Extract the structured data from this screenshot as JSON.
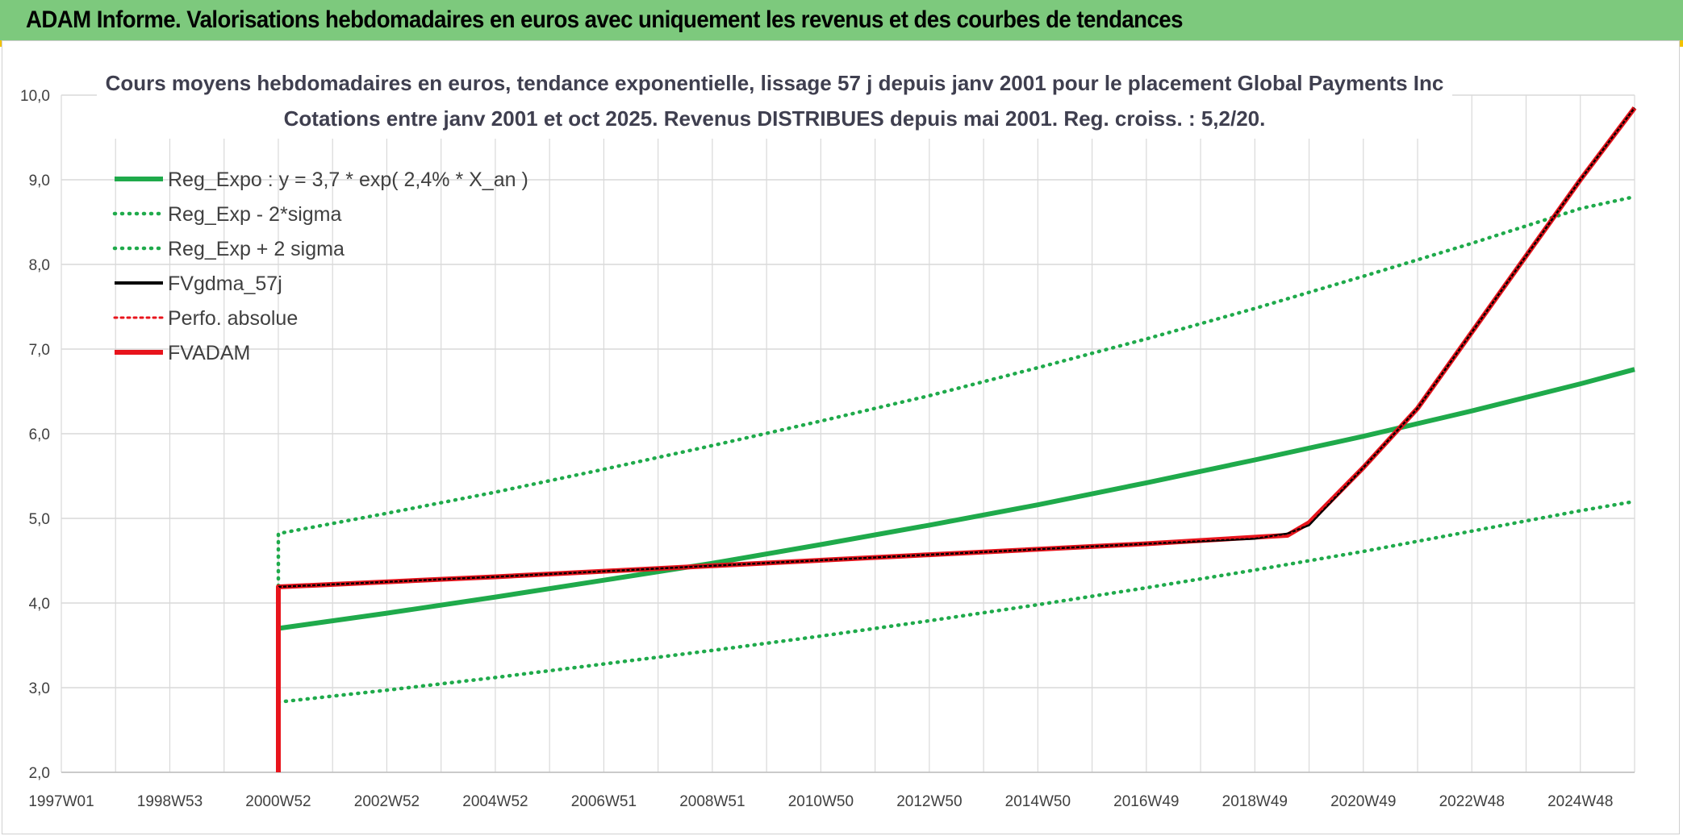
{
  "banner": {
    "title": "ADAM Informe. Valorisations hebdomadaires en euros avec uniquement les revenus et des courbes de tendances"
  },
  "chart_data": {
    "type": "line",
    "title": "Cours moyens hebdomadaires en euros, tendance exponentielle, lissage 57 j depuis janv 2001 pour le placement Global Payments Inc",
    "subtitle": "Cotations entre janv 2001 et oct 2025. Revenus DISTRIBUES depuis mai 2001. Reg. croiss. : 5,2/20.",
    "xlabel": "",
    "ylabel": "",
    "ylim": [
      2.0,
      10.0
    ],
    "y_ticks": [
      "2,0",
      "3,0",
      "4,0",
      "5,0",
      "6,0",
      "7,0",
      "8,0",
      "9,0",
      "10,0"
    ],
    "x_range": [
      1997.0,
      2026.0
    ],
    "x_ticks": [
      {
        "label": "1997W01",
        "x": 1997.0
      },
      {
        "label": "1998W53",
        "x": 1999.0
      },
      {
        "label": "2000W52",
        "x": 2001.0
      },
      {
        "label": "2002W52",
        "x": 2003.0
      },
      {
        "label": "2004W52",
        "x": 2005.0
      },
      {
        "label": "2006W51",
        "x": 2007.0
      },
      {
        "label": "2008W51",
        "x": 2009.0
      },
      {
        "label": "2010W50",
        "x": 2011.0
      },
      {
        "label": "2012W50",
        "x": 2013.0
      },
      {
        "label": "2014W50",
        "x": 2015.0
      },
      {
        "label": "2016W49",
        "x": 2017.0
      },
      {
        "label": "2018W49",
        "x": 2019.0
      },
      {
        "label": "2020W49",
        "x": 2021.0
      },
      {
        "label": "2022W48",
        "x": 2023.0
      },
      {
        "label": "2024W48",
        "x": 2025.0
      }
    ],
    "grid": true,
    "legend_position": "top-left",
    "series": [
      {
        "name": "Reg_Expo : y = 3,7 * exp( 2,4% *  X_an )",
        "color": "#1faa4b",
        "style": "solid",
        "x": [
          2001.0,
          2003.0,
          2005.0,
          2007.0,
          2009.0,
          2011.0,
          2013.0,
          2015.0,
          2017.0,
          2019.0,
          2021.0,
          2023.0,
          2025.0,
          2026.0
        ],
        "y": [
          3.7,
          3.88,
          4.07,
          4.27,
          4.47,
          4.69,
          4.92,
          5.16,
          5.42,
          5.69,
          5.97,
          6.27,
          6.59,
          6.76
        ]
      },
      {
        "name": "Reg_Exp - 2*sigma",
        "color": "#1faa4b",
        "style": "dotted",
        "x": [
          2001.0,
          2003.0,
          2005.0,
          2007.0,
          2009.0,
          2011.0,
          2013.0,
          2015.0,
          2017.0,
          2019.0,
          2021.0,
          2023.0,
          2025.0,
          2026.0
        ],
        "y": [
          2.83,
          2.97,
          3.12,
          3.28,
          3.44,
          3.61,
          3.79,
          3.98,
          4.18,
          4.39,
          4.61,
          4.85,
          5.09,
          5.2
        ]
      },
      {
        "name": "Reg_Exp + 2 sigma",
        "color": "#1faa4b",
        "style": "dotted",
        "x": [
          2001.0,
          2001.0,
          2003.0,
          2005.0,
          2007.0,
          2009.0,
          2011.0,
          2013.0,
          2015.0,
          2017.0,
          2019.0,
          2021.0,
          2023.0,
          2025.0,
          2026.0
        ],
        "y": [
          4.2,
          4.82,
          5.06,
          5.31,
          5.58,
          5.86,
          6.15,
          6.45,
          6.78,
          7.12,
          7.48,
          7.86,
          8.25,
          8.66,
          8.8
        ]
      },
      {
        "name": "FVgdma_57j",
        "color": "#000000",
        "style": "solid",
        "x": [
          2001.0,
          2005.0,
          2009.0,
          2013.0,
          2017.0,
          2019.0,
          2019.6,
          2020.0,
          2021.0,
          2022.0,
          2023.0,
          2024.0,
          2025.0,
          2026.0
        ],
        "y": [
          4.19,
          4.31,
          4.44,
          4.57,
          4.7,
          4.76,
          4.82,
          4.92,
          5.6,
          6.3,
          7.2,
          8.1,
          9.0,
          9.85
        ]
      },
      {
        "name": "Perfo. absolue",
        "color": "#e8141c",
        "style": "dotted",
        "x": [
          2001.0,
          2001.0,
          2005.0,
          2009.0,
          2013.0,
          2017.0,
          2019.6,
          2020.0,
          2021.0,
          2022.0,
          2023.0,
          2024.0,
          2025.0,
          2026.0
        ],
        "y": [
          2.0,
          4.19,
          4.31,
          4.44,
          4.57,
          4.7,
          4.8,
          4.95,
          5.6,
          6.3,
          7.2,
          8.1,
          9.0,
          9.85
        ]
      },
      {
        "name": "FVADAM",
        "color": "#e8141c",
        "style": "solid",
        "x": [
          2001.0,
          2001.0,
          2005.0,
          2009.0,
          2013.0,
          2017.0,
          2019.6,
          2020.0,
          2021.0,
          2022.0,
          2023.0,
          2024.0,
          2025.0,
          2026.0
        ],
        "y": [
          2.0,
          4.19,
          4.31,
          4.44,
          4.57,
          4.7,
          4.8,
          4.95,
          5.6,
          6.3,
          7.2,
          8.1,
          9.0,
          9.85
        ]
      }
    ]
  }
}
